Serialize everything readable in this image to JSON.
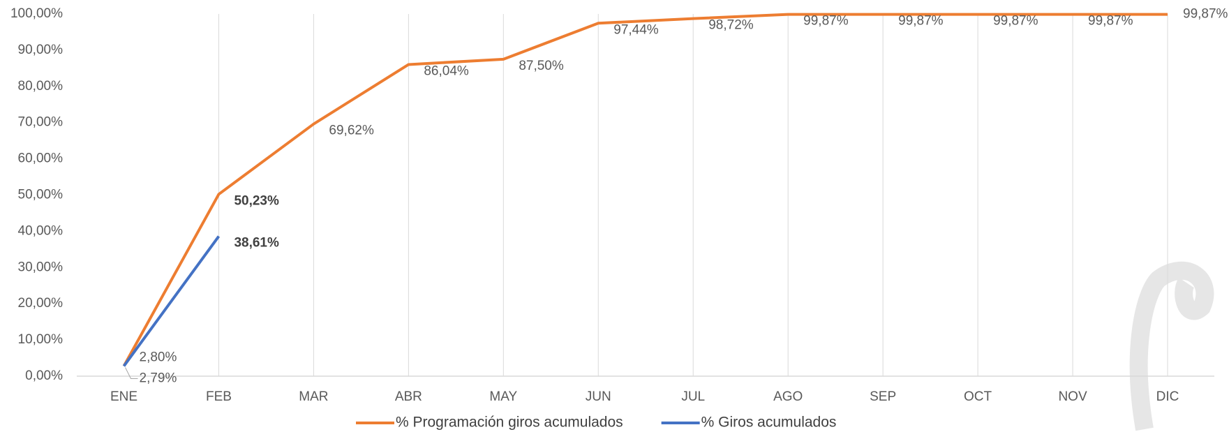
{
  "chart_data": {
    "type": "line",
    "categories": [
      "ENE",
      "FEB",
      "MAR",
      "ABR",
      "MAY",
      "JUN",
      "JUL",
      "AGO",
      "SEP",
      "OCT",
      "NOV",
      "DIC"
    ],
    "series": [
      {
        "name": "% Programación giros acumulados",
        "color": "#ed7d31",
        "values": [
          2.8,
          50.23,
          69.62,
          86.04,
          87.5,
          97.44,
          98.72,
          99.87,
          99.87,
          99.87,
          99.87,
          99.87
        ],
        "value_labels": [
          "2,80%",
          "50,23%",
          "69,62%",
          "86,04%",
          "87,50%",
          "97,44%",
          "98,72%",
          "99,87%",
          "99,87%",
          "99,87%",
          "99,87%",
          "99,87%"
        ]
      },
      {
        "name": "% Giros acumulados",
        "color": "#4472c4",
        "values": [
          2.79,
          38.61,
          null,
          null,
          null,
          null,
          null,
          null,
          null,
          null,
          null,
          null
        ],
        "value_labels": [
          "2,79%",
          "38,61%",
          null,
          null,
          null,
          null,
          null,
          null,
          null,
          null,
          null,
          null
        ]
      }
    ],
    "ylim": [
      0,
      100
    ],
    "yticks": [
      {
        "value": 0,
        "label": "0,00%"
      },
      {
        "value": 10,
        "label": "10,00%"
      },
      {
        "value": 20,
        "label": "20,00%"
      },
      {
        "value": 30,
        "label": "30,00%"
      },
      {
        "value": 40,
        "label": "40,00%"
      },
      {
        "value": 50,
        "label": "50,00%"
      },
      {
        "value": 60,
        "label": "60,00%"
      },
      {
        "value": 70,
        "label": "70,00%"
      },
      {
        "value": 80,
        "label": "80,00%"
      },
      {
        "value": 90,
        "label": "90,00%"
      },
      {
        "value": 100,
        "label": "100,00%"
      }
    ],
    "grid": "x",
    "legend": "bottom"
  }
}
